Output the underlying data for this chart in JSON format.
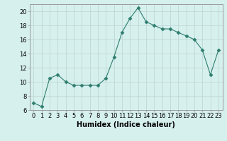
{
  "x": [
    0,
    1,
    2,
    3,
    4,
    5,
    6,
    7,
    8,
    9,
    10,
    11,
    12,
    13,
    14,
    15,
    16,
    17,
    18,
    19,
    20,
    21,
    22,
    23
  ],
  "y": [
    7,
    6.5,
    10.5,
    11,
    10,
    9.5,
    9.5,
    9.5,
    9.5,
    10.5,
    13.5,
    17,
    19,
    20.5,
    18.5,
    18,
    17.5,
    17.5,
    17,
    16.5,
    16,
    14.5,
    11,
    14.5
  ],
  "line_color": "#2e7d6e",
  "marker": "D",
  "marker_size": 2.5,
  "bg_color": "#d6f0ee",
  "grid_color": "#c0d8d4",
  "xlabel": "Humidex (Indice chaleur)",
  "xlim": [
    -0.5,
    23.5
  ],
  "ylim": [
    6,
    21
  ],
  "yticks": [
    6,
    8,
    10,
    12,
    14,
    16,
    18,
    20
  ],
  "xtick_labels": [
    "0",
    "1",
    "2",
    "3",
    "4",
    "5",
    "6",
    "7",
    "8",
    "9",
    "10",
    "11",
    "12",
    "13",
    "14",
    "15",
    "16",
    "17",
    "18",
    "19",
    "20",
    "21",
    "22",
    "23"
  ],
  "axis_fontsize": 7,
  "tick_fontsize": 6
}
